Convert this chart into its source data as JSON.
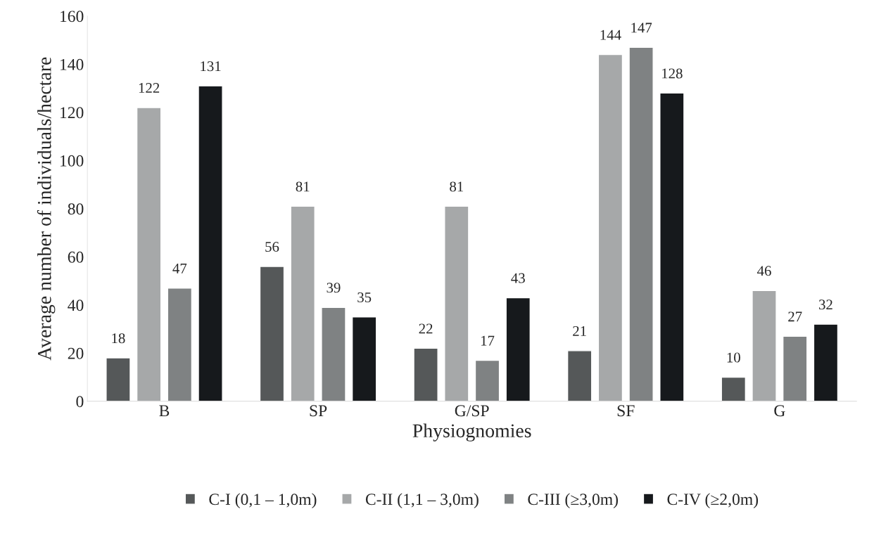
{
  "chart_data": {
    "type": "bar",
    "xlabel": "Physiognomies",
    "ylabel": "Average number of individuals/hectare",
    "categories": [
      "B",
      "SP",
      "G/SP",
      "SF",
      "G"
    ],
    "series": [
      {
        "name": "C-I (0,1 – 1,0m)",
        "color": "#555859",
        "values": [
          18,
          56,
          22,
          21,
          10
        ]
      },
      {
        "name": "C-II (1,1 – 3,0m)",
        "color": "#a6a8a9",
        "values": [
          122,
          81,
          81,
          144,
          46
        ]
      },
      {
        "name": "C-III (≥3,0m)",
        "color": "#7f8283",
        "values": [
          47,
          39,
          17,
          147,
          27
        ]
      },
      {
        "name": "C-IV (≥2,0m)",
        "color": "#16191c",
        "values": [
          131,
          35,
          43,
          128,
          32
        ]
      }
    ],
    "ylim": [
      0,
      160
    ],
    "yticks": [
      0,
      20,
      40,
      60,
      80,
      100,
      120,
      140,
      160
    ],
    "data_labels": true,
    "legend": "bottom",
    "grid": false
  }
}
